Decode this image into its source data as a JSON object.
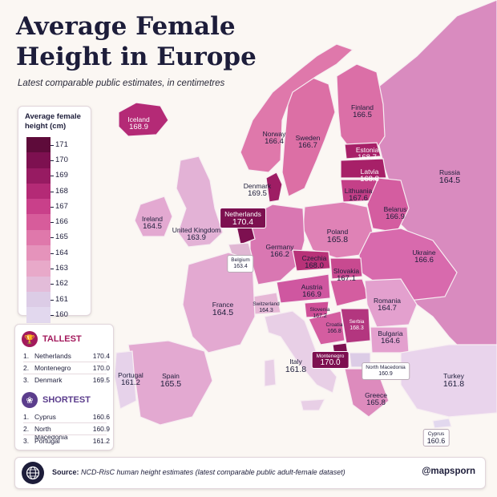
{
  "title_line1": "Average Female",
  "title_line2": "Height in Europe",
  "subtitle": "Latest comparable public estimates, in centimetres",
  "legend": {
    "title": "Average female height (cm)",
    "ticks": [
      "171",
      "170",
      "169",
      "168",
      "167",
      "166",
      "165",
      "164",
      "163",
      "162",
      "161",
      "160"
    ],
    "colors": [
      "#5e0b3a",
      "#7d1050",
      "#971b62",
      "#b42a76",
      "#c9408a",
      "#d75c9b",
      "#df78ab",
      "#e593bb",
      "#e8a9c9",
      "#e3bcd9",
      "#dccce6",
      "#e2d8ee"
    ]
  },
  "tallest": {
    "title": "TALLEST",
    "color": "#a3195c",
    "rows": [
      {
        "rank": "1.",
        "name": "Netherlands",
        "value": "170.4"
      },
      {
        "rank": "2.",
        "name": "Montenegro",
        "value": "170.0"
      },
      {
        "rank": "3.",
        "name": "Denmark",
        "value": "169.5"
      }
    ]
  },
  "shortest": {
    "title": "SHORTEST",
    "color": "#5b3d8c",
    "rows": [
      {
        "rank": "1.",
        "name": "Cyprus",
        "value": "160.6"
      },
      {
        "rank": "2.",
        "name": "North Macedonia",
        "value": "160.9"
      },
      {
        "rank": "3.",
        "name": "Portugal",
        "value": "161.2"
      }
    ]
  },
  "footer": {
    "source_label": "Source:",
    "source_text": "NCD-RisC human height estimates (latest comparable public adult-female dataset)",
    "handle": "@mapsporn"
  },
  "countries": {
    "iceland": {
      "name": "Iceland",
      "value": "168.9"
    },
    "norway": {
      "name": "Norway",
      "value": "166.4"
    },
    "sweden": {
      "name": "Sweden",
      "value": "166.7"
    },
    "finland": {
      "name": "Finland",
      "value": "166.5"
    },
    "russia": {
      "name": "Russia",
      "value": "164.5"
    },
    "estonia": {
      "name": "Estonia",
      "value": "168.7"
    },
    "latvia": {
      "name": "Latvia",
      "value": "168.8"
    },
    "lithuania": {
      "name": "Lithuania",
      "value": "167.6"
    },
    "denmark": {
      "name": "Denmark",
      "value": "169.5"
    },
    "belarus": {
      "name": "Belarus",
      "value": "166.9"
    },
    "ireland": {
      "name": "Ireland",
      "value": "164.5"
    },
    "uk": {
      "name": "United Kingdom",
      "value": "163.9"
    },
    "netherlands": {
      "name": "Netherlands",
      "value": "170.4"
    },
    "poland": {
      "name": "Poland",
      "value": "165.8"
    },
    "germany": {
      "name": "Germany",
      "value": "166.2"
    },
    "belgium": {
      "name": "Belgium",
      "value": "163.4"
    },
    "ukraine": {
      "name": "Ukraine",
      "value": "166.6"
    },
    "czechia": {
      "name": "Czechia",
      "value": "168.0"
    },
    "slovakia": {
      "name": "Slovakia",
      "value": "167.1"
    },
    "austria": {
      "name": "Austria",
      "value": "166.9"
    },
    "france": {
      "name": "France",
      "value": "164.5"
    },
    "switzerland": {
      "name": "Switzerland",
      "value": "164.3"
    },
    "romania": {
      "name": "Romania",
      "value": "164.7"
    },
    "slovenia": {
      "name": "Slovenia",
      "value": "167.2"
    },
    "croatia": {
      "name": "Croatia",
      "value": "166.8"
    },
    "serbia": {
      "name": "Serbia",
      "value": "168.3"
    },
    "bulgaria": {
      "name": "Bulgaria",
      "value": "164.6"
    },
    "montenegro": {
      "name": "Montenegro",
      "value": "170.0"
    },
    "italy": {
      "name": "Italy",
      "value": "161.8"
    },
    "north_macedonia": {
      "name": "North Macedonia",
      "value": "160.9"
    },
    "portugal": {
      "name": "Portugal",
      "value": "161.2"
    },
    "spain": {
      "name": "Spain",
      "value": "165.5"
    },
    "turkey": {
      "name": "Turkey",
      "value": "161.8"
    },
    "greece": {
      "name": "Greece",
      "value": "165.8"
    },
    "cyprus": {
      "name": "Cyprus",
      "value": "160.6"
    }
  },
  "map_colors": {
    "sea": "#fbf7f3",
    "border": "#f7eef2",
    "non_data": "#e9dde6"
  }
}
